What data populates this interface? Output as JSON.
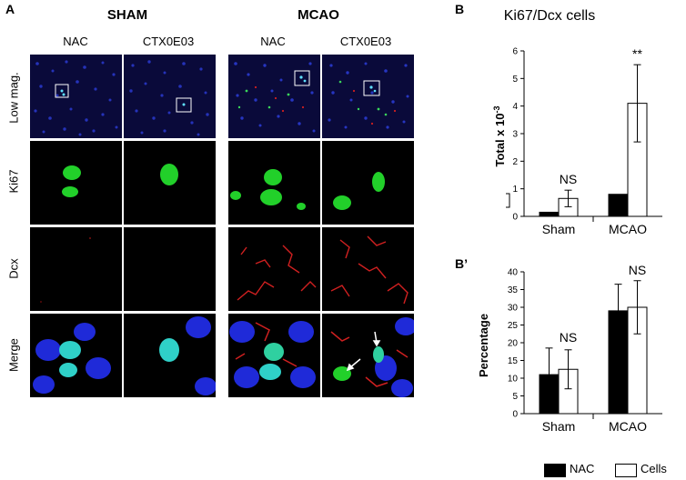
{
  "figure": {
    "panel_a_letter": "A",
    "groups": [
      "SHAM",
      "MCAO"
    ],
    "columns": [
      "NAC",
      "CTX0E03",
      "NAC",
      "CTX0E03"
    ],
    "rows": [
      "Low mag.",
      "Ki67",
      "Dcx",
      "Merge"
    ],
    "panel_b_letter": "B",
    "panel_b2_letter": "B’"
  },
  "chart_data": [
    {
      "type": "bar",
      "title": "Ki67/Dcx cells",
      "ylabel": "Total x 10",
      "ylabel_sup": "-3",
      "categories": [
        "Sham",
        "MCAO"
      ],
      "ylim": [
        0,
        6
      ],
      "yticks": [
        0,
        1,
        2,
        3,
        4,
        5,
        6
      ],
      "series": [
        {
          "name": "NAC",
          "values": [
            0.15,
            0.8
          ],
          "errors": [
            0,
            0
          ],
          "color": "#000000"
        },
        {
          "name": "Cells",
          "values": [
            0.65,
            4.1
          ],
          "errors": [
            0.3,
            1.4
          ],
          "color": "#ffffff"
        }
      ],
      "annotations": [
        "NS",
        "**"
      ]
    },
    {
      "type": "bar",
      "title": "",
      "ylabel": "Percentage",
      "categories": [
        "Sham",
        "MCAO"
      ],
      "ylim": [
        0,
        40
      ],
      "yticks": [
        0,
        5,
        10,
        15,
        20,
        25,
        30,
        35,
        40
      ],
      "series": [
        {
          "name": "NAC",
          "values": [
            11,
            29
          ],
          "errors": [
            7.5,
            7.5
          ],
          "color": "#000000"
        },
        {
          "name": "Cells",
          "values": [
            12.5,
            30
          ],
          "errors": [
            5.5,
            7.5
          ],
          "color": "#ffffff"
        }
      ],
      "annotations": [
        "NS",
        "NS"
      ]
    }
  ],
  "legend": {
    "items": [
      {
        "label": "NAC",
        "color": "#000000"
      },
      {
        "label": "Cells",
        "color": "#ffffff"
      }
    ]
  }
}
